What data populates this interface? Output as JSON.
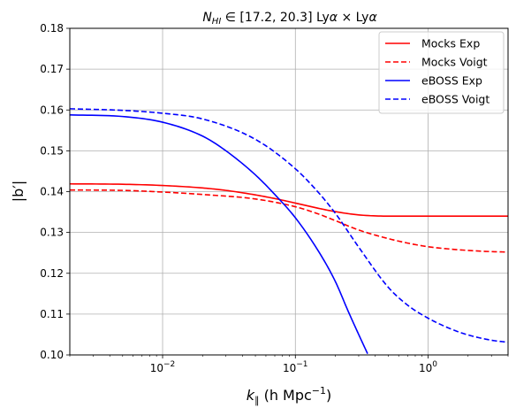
{
  "chart_data": {
    "type": "line",
    "title": "N_HI ∈ [17.2, 20.3] Lyα × Lyα",
    "title_parts": {
      "n": "N",
      "n_sub": "HI",
      "range": " ∈ [17.2, 20.3] Ly",
      "alpha1": "α",
      "times": " × Ly",
      "alpha2": "α"
    },
    "xlabel": "k_∥ (h Mpc⁻¹)",
    "xlabel_parts": {
      "k": "k",
      "k_sub": "∥",
      "unit": " (h Mpc",
      "exp": "−1",
      "close": ")"
    },
    "ylabel": "|b′|",
    "xscale": "log",
    "xlim": [
      0.002,
      4.0
    ],
    "ylim": [
      0.1,
      0.18
    ],
    "grid": true,
    "legend_position": "top-right",
    "x_ticks": [
      {
        "value": 0.01,
        "base": "10",
        "exp": "−2"
      },
      {
        "value": 0.1,
        "base": "10",
        "exp": "−1"
      },
      {
        "value": 1,
        "base": "10",
        "exp": "0"
      }
    ],
    "y_ticks": [
      {
        "value": 0.1,
        "label": "0.10"
      },
      {
        "value": 0.11,
        "label": "0.11"
      },
      {
        "value": 0.12,
        "label": "0.12"
      },
      {
        "value": 0.13,
        "label": "0.13"
      },
      {
        "value": 0.14,
        "label": "0.14"
      },
      {
        "value": 0.15,
        "label": "0.15"
      },
      {
        "value": 0.16,
        "label": "0.16"
      },
      {
        "value": 0.17,
        "label": "0.17"
      },
      {
        "value": 0.18,
        "label": "0.18"
      }
    ],
    "series": [
      {
        "name": "Mocks Exp",
        "color": "#ff0000",
        "dash": "solid",
        "x": [
          0.002,
          0.005,
          0.01,
          0.02,
          0.03,
          0.05,
          0.07,
          0.1,
          0.15,
          0.2,
          0.3,
          0.5,
          1.0,
          2.0,
          4.0
        ],
        "y": [
          0.1419,
          0.1418,
          0.1415,
          0.1409,
          0.1403,
          0.1392,
          0.1383,
          0.1372,
          0.1359,
          0.1351,
          0.1343,
          0.134,
          0.134,
          0.134,
          0.134
        ]
      },
      {
        "name": "Mocks Voigt",
        "color": "#ff0000",
        "dash": "dashed",
        "x": [
          0.002,
          0.005,
          0.01,
          0.02,
          0.05,
          0.1,
          0.15,
          0.2,
          0.3,
          0.5,
          0.7,
          1.0,
          1.5,
          2.0,
          3.0,
          4.0
        ],
        "y": [
          0.1404,
          0.1403,
          0.1399,
          0.1393,
          0.1382,
          0.1363,
          0.1345,
          0.1329,
          0.1306,
          0.1285,
          0.1274,
          0.1265,
          0.1259,
          0.1256,
          0.1253,
          0.1252
        ]
      },
      {
        "name": "eBOSS Exp",
        "color": "#0000ff",
        "dash": "solid",
        "x": [
          0.002,
          0.005,
          0.01,
          0.02,
          0.03,
          0.05,
          0.07,
          0.1,
          0.15,
          0.2,
          0.25,
          0.3,
          0.35
        ],
        "y": [
          0.1588,
          0.1584,
          0.157,
          0.1536,
          0.15,
          0.1441,
          0.1393,
          0.1336,
          0.1253,
          0.118,
          0.1107,
          0.105,
          0.1003
        ]
      },
      {
        "name": "eBOSS Voigt",
        "color": "#0000ff",
        "dash": "dashed",
        "x": [
          0.002,
          0.005,
          0.01,
          0.02,
          0.05,
          0.1,
          0.15,
          0.2,
          0.3,
          0.5,
          0.7,
          1.0,
          1.5,
          2.0,
          3.0,
          4.0
        ],
        "y": [
          0.1603,
          0.1599,
          0.1592,
          0.1578,
          0.1528,
          0.1456,
          0.1397,
          0.1347,
          0.1264,
          0.1166,
          0.1122,
          0.109,
          0.1063,
          0.1049,
          0.1036,
          0.1031
        ]
      }
    ]
  }
}
